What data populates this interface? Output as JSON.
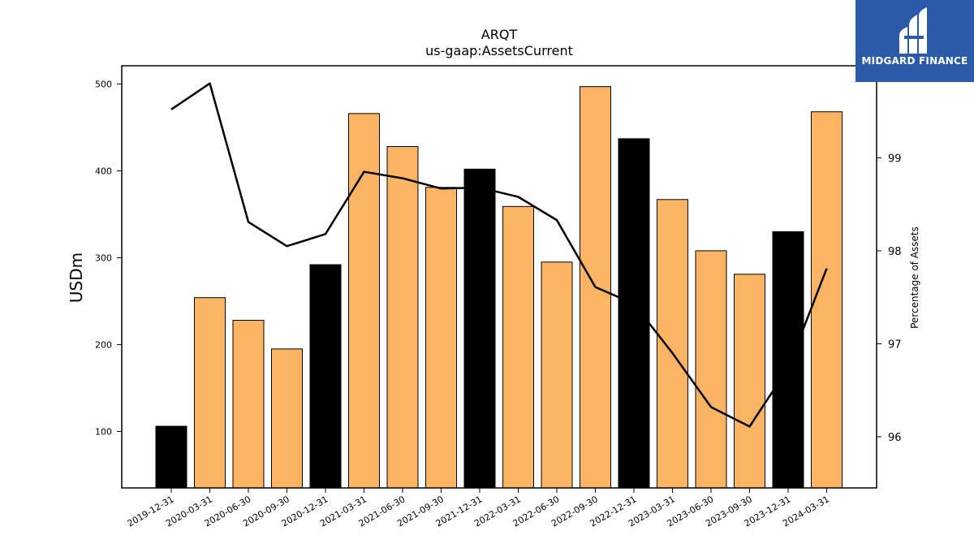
{
  "logo": {
    "text": "MIDGARD FINANCE"
  },
  "colors": {
    "bar_regular": "#FBB464",
    "bar_year_end": "#000000",
    "line": "#000000",
    "logo_bg": "#2A5AA8"
  },
  "chart_data": {
    "type": "bar",
    "title": "ARQT",
    "subtitle": "us-gaap:AssetsCurrent",
    "xlabel": "",
    "ylabel": "USDm",
    "y2label": "Percentage of Assets",
    "ylim": [
      35,
      521
    ],
    "y2lim": [
      95.45,
      99.99
    ],
    "yticks": [
      100,
      200,
      300,
      400,
      500
    ],
    "y2ticks": [
      96,
      97,
      98,
      99
    ],
    "categories": [
      "2019-12-31",
      "2020-03-31",
      "2020-06-30",
      "2020-09-30",
      "2020-12-31",
      "2021-03-31",
      "2021-06-30",
      "2021-09-30",
      "2021-12-31",
      "2022-03-31",
      "2022-06-30",
      "2022-09-30",
      "2022-12-31",
      "2023-03-31",
      "2023-06-30",
      "2023-09-30",
      "2023-12-31",
      "2024-03-31"
    ],
    "series": [
      {
        "values": [
          106,
          254,
          228,
          195,
          292,
          466,
          428,
          381,
          402,
          359,
          295,
          497,
          437,
          367,
          308,
          281,
          330,
          468
        ]
      },
      {
        "axis": "right",
        "type": "line",
        "values": [
          99.52,
          99.8,
          98.31,
          98.05,
          98.18,
          98.85,
          98.78,
          98.67,
          98.68,
          98.58,
          98.33,
          97.61,
          97.43,
          96.9,
          96.32,
          96.11,
          96.74,
          97.81
        ]
      }
    ],
    "year_end_categories": [
      "2019-12-31",
      "2020-12-31",
      "2021-12-31",
      "2022-12-31",
      "2023-12-31"
    ],
    "grid": false,
    "legend": "none"
  }
}
